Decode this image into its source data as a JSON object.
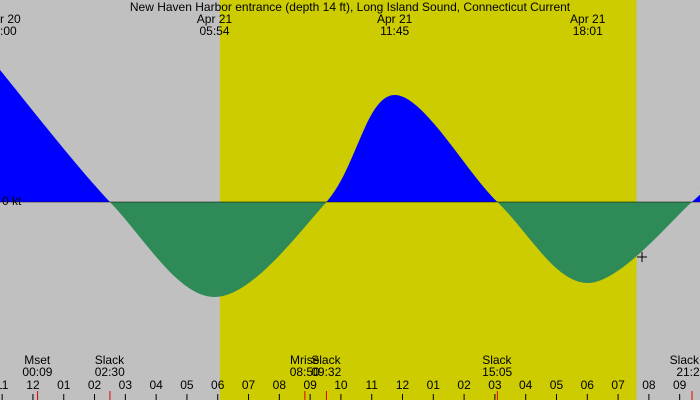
{
  "chart_data": {
    "type": "area",
    "title": "New Haven Harbor entrance (depth 14 ft), Long Island Sound, Connecticut Current",
    "zero_label": "0 kt",
    "x": [
      -1.07,
      2.5,
      5.9,
      9.53,
      11.75,
      15.08,
      18.02,
      21.4,
      21.66
    ],
    "values": [
      1.32,
      0,
      -0.95,
      0,
      1.07,
      0,
      -0.81,
      0,
      0.14
    ],
    "xlim": [
      -1.07,
      21.66
    ],
    "ylim": [
      -1.98,
      2.02
    ],
    "xticks": [
      {
        "value": -1,
        "label": "11"
      },
      {
        "value": 0,
        "label": "12"
      },
      {
        "value": 1,
        "label": "01"
      },
      {
        "value": 2,
        "label": "02"
      },
      {
        "value": 3,
        "label": "03"
      },
      {
        "value": 4,
        "label": "04"
      },
      {
        "value": 5,
        "label": "05"
      },
      {
        "value": 6,
        "label": "06"
      },
      {
        "value": 7,
        "label": "07"
      },
      {
        "value": 8,
        "label": "08"
      },
      {
        "value": 9,
        "label": "09"
      },
      10,
      11,
      12,
      {
        "value": 13,
        "label": "01"
      },
      {
        "value": 14,
        "label": "02"
      },
      {
        "value": 15,
        "label": "03"
      },
      {
        "value": 16,
        "label": "04"
      },
      {
        "value": 17,
        "label": "05"
      },
      {
        "value": 18,
        "label": "06"
      },
      {
        "value": 19,
        "label": "07"
      },
      {
        "value": 20,
        "label": "08"
      },
      {
        "value": 21,
        "label": "09"
      }
    ],
    "flood_color": "#0000ff",
    "ebb_color": "#2e8b57",
    "night_color": "#c0c0c0",
    "day_color": "#cccc00",
    "daylight": [
      6.07,
      19.6
    ],
    "top_events": [
      {
        "date": "r 20",
        "time": ":00",
        "x": -1
      },
      {
        "date": "Apr 21",
        "time": "05:54",
        "x": 5.9
      },
      {
        "date": "Apr 21",
        "time": "11:45",
        "x": 11.75
      },
      {
        "date": "Apr 21",
        "time": "18:01",
        "x": 18.02
      }
    ],
    "bottom_events": [
      {
        "name": "Mset",
        "time": "00:09",
        "x": 0.15
      },
      {
        "name": "Slack",
        "time": "02:30",
        "x": 2.5
      },
      {
        "name": "Mrise",
        "time": "08:50",
        "x": 8.83
      },
      {
        "name": "Slack",
        "time": "09:32",
        "x": 9.53
      },
      {
        "name": "Slack",
        "time": "15:05",
        "x": 15.08
      },
      {
        "name": "Slack",
        "time": "21:2",
        "x": 21.4
      }
    ]
  }
}
